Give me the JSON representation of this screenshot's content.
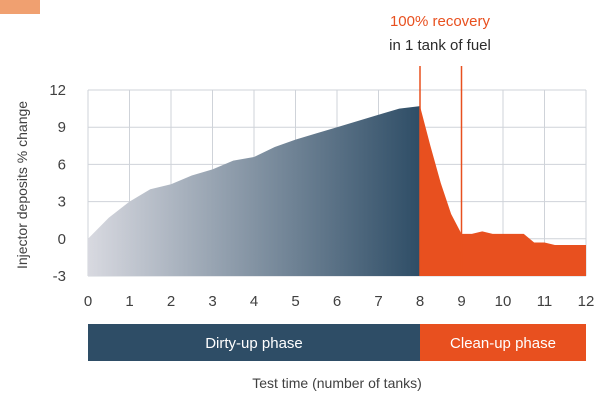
{
  "chart_data": {
    "type": "area",
    "xlabel": "Test time (number of tanks)",
    "ylabel": "Injector deposits % change",
    "xlim": [
      0,
      12
    ],
    "ylim": [
      -3,
      12
    ],
    "x_ticks": [
      "0",
      "1",
      "2",
      "3",
      "4",
      "5",
      "6",
      "7",
      "8",
      "9",
      "10",
      "11",
      "12"
    ],
    "y_ticks": [
      "12",
      "9",
      "6",
      "3",
      "0",
      "-3"
    ],
    "grid": true,
    "series": [
      {
        "phase": "dirty-up",
        "x": [
          0,
          0.5,
          1,
          1.5,
          2,
          2.5,
          3,
          3.5,
          4,
          4.5,
          5,
          5.5,
          6,
          6.5,
          7,
          7.5,
          8
        ],
        "y": [
          0,
          1.7,
          3.0,
          4.0,
          4.4,
          5.1,
          5.6,
          6.3,
          6.6,
          7.4,
          8.0,
          8.5,
          9.0,
          9.5,
          10.0,
          10.5,
          10.7
        ]
      },
      {
        "phase": "clean-up",
        "x": [
          8,
          8.25,
          8.5,
          8.75,
          9,
          9.25,
          9.5,
          9.75,
          10,
          10.25,
          10.5,
          10.75,
          11,
          11.25,
          11.5,
          12
        ],
        "y": [
          10.7,
          7.5,
          4.5,
          2.0,
          0.4,
          0.4,
          0.6,
          0.4,
          0.4,
          0.4,
          0.4,
          -0.3,
          -0.3,
          -0.5,
          -0.5,
          -0.5
        ]
      }
    ],
    "markers_x": [
      8,
      9
    ],
    "annotation": {
      "highlight": "100% recovery",
      "text": "in 1 tank of fuel"
    },
    "phases": [
      {
        "label": "Dirty-up phase",
        "from": 0,
        "to": 8,
        "color": "#2e4d66"
      },
      {
        "label": "Clean-up phase",
        "from": 8,
        "to": 12,
        "color": "#e8501f"
      }
    ],
    "colors": {
      "dirty_start": "#d8d9e0",
      "dirty_end": "#2e4d66",
      "clean": "#e8501f",
      "grid": "#cfd3d9",
      "corner_tab": "#f0a070"
    }
  }
}
